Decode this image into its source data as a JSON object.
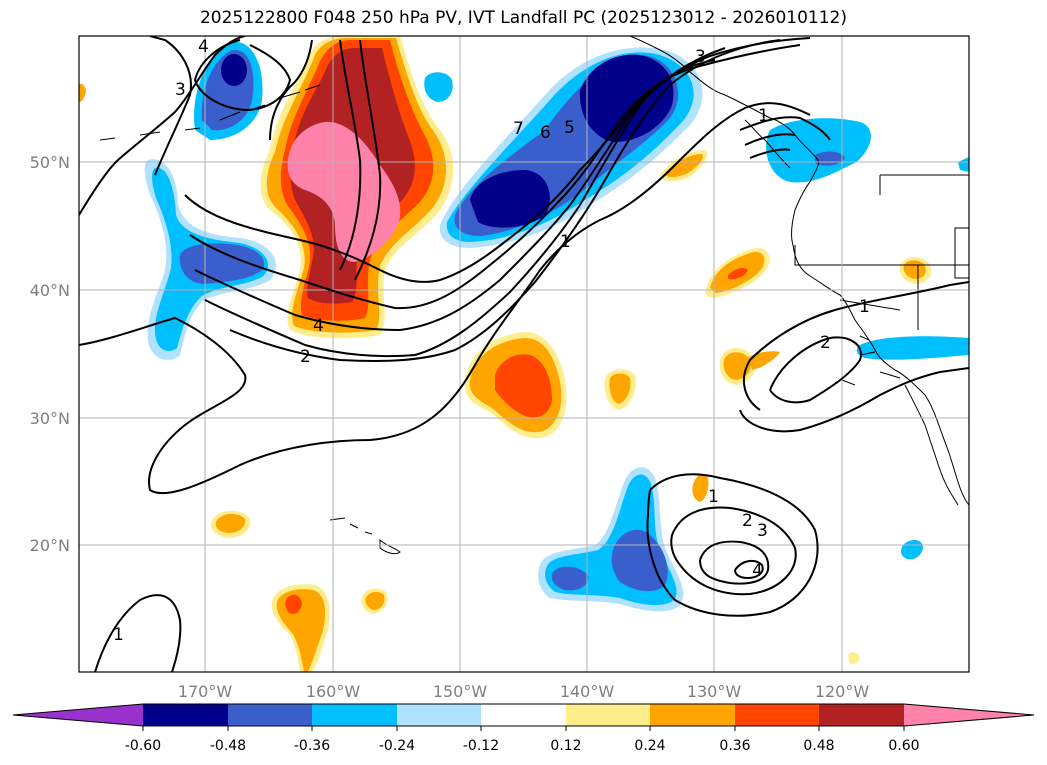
{
  "title": "2025122800 F048 250 hPa PV, IVT Landfall PC (2025123012 - 2026010112)",
  "axes": {
    "lat_labels": [
      "50°N",
      "40°N",
      "30°N",
      "20°N"
    ],
    "lon_labels": [
      "170°W",
      "160°W",
      "150°W",
      "140°W",
      "130°W",
      "120°W"
    ]
  },
  "contour_labels": [
    "4",
    "3",
    "7",
    "6",
    "5",
    "3",
    "1",
    "1",
    "4",
    "2",
    "1",
    "2",
    "1",
    "2",
    "3",
    "4",
    "1"
  ],
  "colorbar": {
    "ticks": [
      "-0.60",
      "-0.48",
      "-0.36",
      "-0.24",
      "-0.12",
      "0.12",
      "0.24",
      "0.36",
      "0.48",
      "0.60"
    ],
    "colors": [
      "#9932cc",
      "#00008b",
      "#3a5fcd",
      "#00bfff",
      "#b0e2ff",
      "#ffffff",
      "#ffec8b",
      "#ffa500",
      "#ff4500",
      "#b22222",
      "#ff82ab"
    ]
  }
}
